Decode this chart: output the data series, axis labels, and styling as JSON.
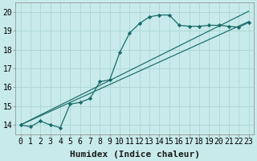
{
  "xlabel": "Humidex (Indice chaleur)",
  "ylabel": "",
  "bg_color": "#c8eaea",
  "line_color": "#1a6b6b",
  "grid_color": "#b0d8d8",
  "xlim": [
    -0.5,
    23.5
  ],
  "ylim": [
    13.5,
    20.5
  ],
  "xticks": [
    0,
    1,
    2,
    3,
    4,
    5,
    6,
    7,
    8,
    9,
    10,
    11,
    12,
    13,
    14,
    15,
    16,
    17,
    18,
    19,
    20,
    21,
    22,
    23
  ],
  "yticks": [
    14,
    15,
    16,
    17,
    18,
    19,
    20
  ],
  "curve1_x": [
    0,
    1,
    2,
    3,
    4,
    5,
    6,
    7,
    8,
    9,
    10,
    11,
    12,
    13,
    14,
    15,
    16,
    17,
    18,
    19,
    20,
    21,
    22,
    23
  ],
  "curve1_y": [
    14.0,
    13.9,
    14.2,
    14.0,
    13.85,
    15.1,
    15.2,
    15.4,
    16.3,
    16.4,
    17.85,
    18.9,
    19.4,
    19.75,
    19.85,
    19.85,
    19.3,
    19.25,
    19.25,
    19.3,
    19.3,
    19.25,
    19.2,
    19.45
  ],
  "line1_x": [
    0,
    23
  ],
  "line1_y": [
    14.0,
    19.5
  ],
  "line2_x": [
    0,
    23
  ],
  "line2_y": [
    14.0,
    20.05
  ],
  "tick_fontsize": 7,
  "xlabel_fontsize": 8,
  "marker": "D",
  "markersize": 2.2
}
